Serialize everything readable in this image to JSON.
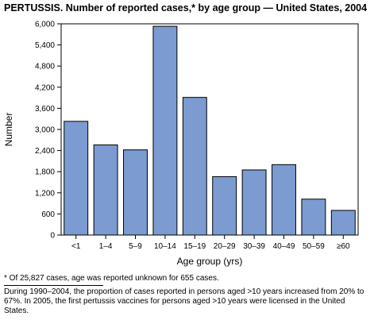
{
  "title": "PERTUSSIS. Number of reported cases,* by age group — United States, 2004",
  "chart_data": {
    "type": "bar",
    "categories": [
      "<1",
      "1–4",
      "5–9",
      "10–14",
      "15–19",
      "20–29",
      "30–39",
      "40–49",
      "50–59",
      "≥60"
    ],
    "values": [
      3230,
      2560,
      2420,
      5930,
      3910,
      1660,
      1850,
      2000,
      1020,
      700
    ],
    "xlabel": "Age group (yrs)",
    "ylabel": "Number",
    "ylim": [
      0,
      6000
    ],
    "yticks": [
      0,
      600,
      1200,
      1800,
      2400,
      3000,
      3600,
      4200,
      4800,
      5400,
      6000
    ],
    "ytick_labels": [
      "0",
      "600",
      "1,200",
      "1,800",
      "2,400",
      "3,000",
      "3,600",
      "4,200",
      "4,800",
      "5,400",
      "6,000"
    ],
    "bar_color": "#7b9bd1",
    "grid": false
  },
  "footnotes": {
    "asterisk": "* Of 25,827 cases, age was reported unknown for 655 cases.",
    "note": "During 1990–2004, the proportion of cases reported in persons aged >10 years increased from 20% to 67%. In 2005, the first pertussis vaccines for persons aged >10 years were licensed in the United States."
  }
}
